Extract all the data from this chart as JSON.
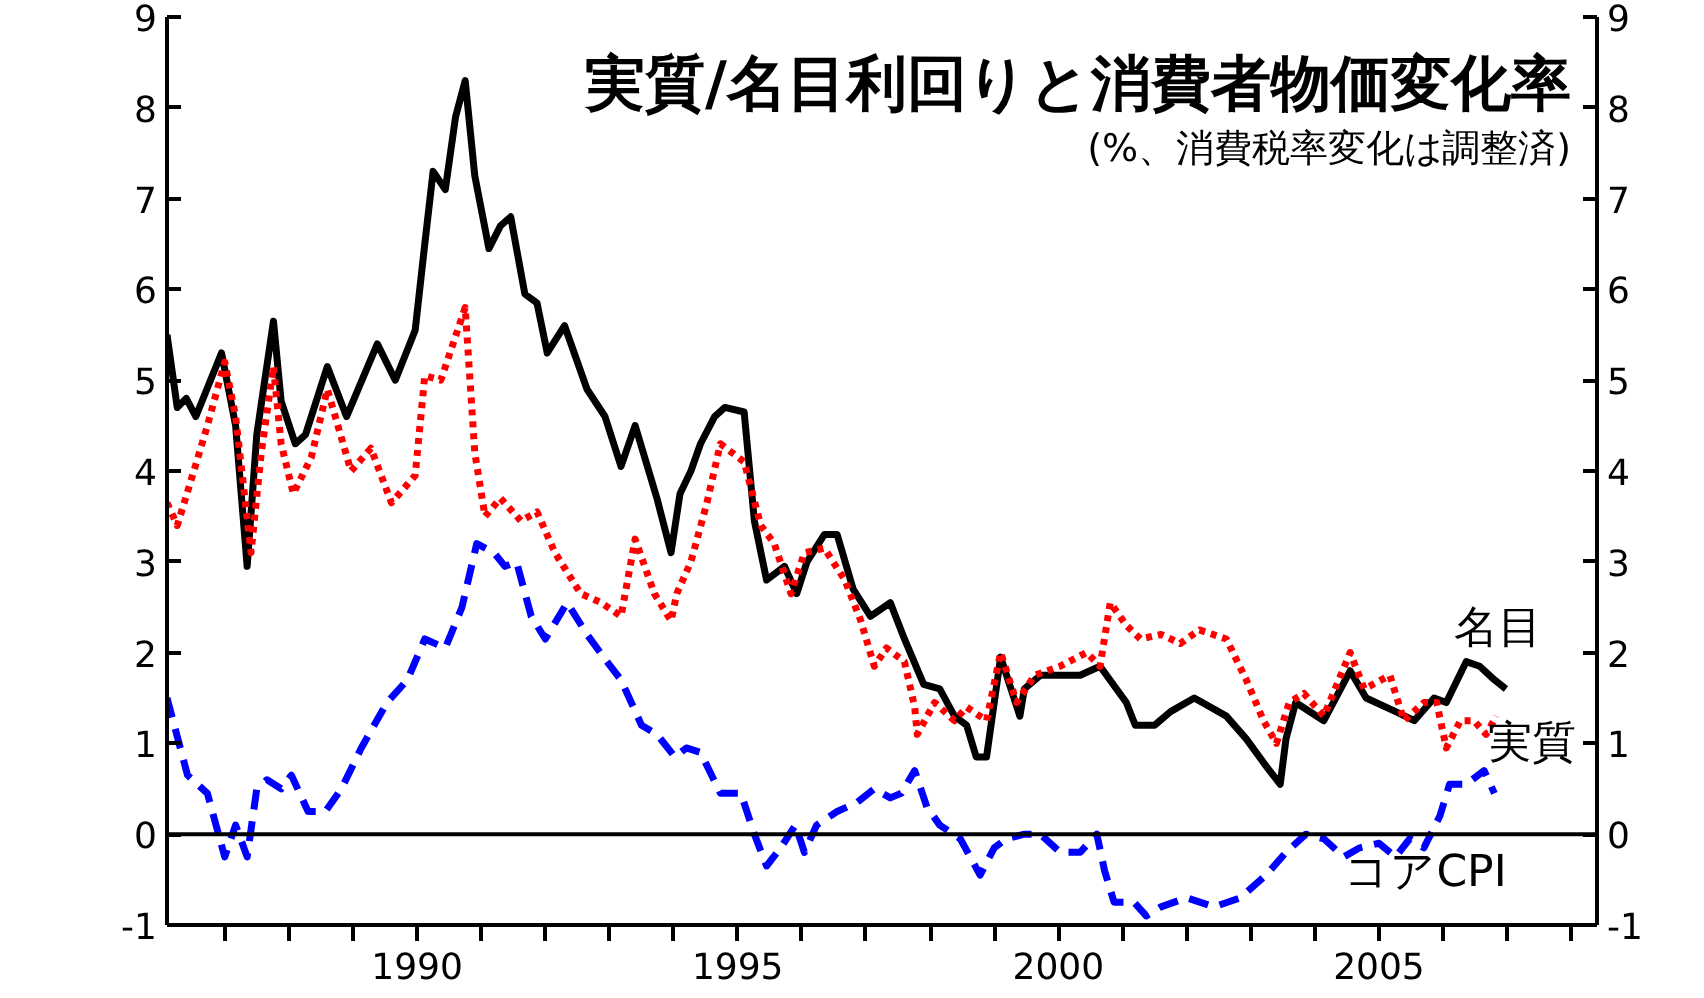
{
  "chart_data": {
    "type": "line",
    "title": "実質/名目利回りと消費者物価変化率",
    "subtitle": "(%、消費税率変化は調整済)",
    "xlim": [
      1986.1,
      2008.4
    ],
    "ylim": [
      -1,
      9
    ],
    "xticks": [
      {
        "value": 1987,
        "label": null
      },
      {
        "value": 1988,
        "label": null
      },
      {
        "value": 1989,
        "label": null
      },
      1990,
      {
        "value": 1991,
        "label": null
      },
      {
        "value": 1992,
        "label": null
      },
      {
        "value": 1993,
        "label": null
      },
      {
        "value": 1994,
        "label": null
      },
      1995,
      {
        "value": 1996,
        "label": null
      },
      {
        "value": 1997,
        "label": null
      },
      {
        "value": 1998,
        "label": null
      },
      {
        "value": 1999,
        "label": null
      },
      2000,
      {
        "value": 2001,
        "label": null
      },
      {
        "value": 2002,
        "label": null
      },
      {
        "value": 2003,
        "label": null
      },
      {
        "value": 2004,
        "label": null
      },
      2005,
      {
        "value": 2006,
        "label": null
      },
      {
        "value": 2007,
        "label": null
      },
      {
        "value": 2008,
        "label": null
      }
    ],
    "yticks": [
      -1,
      0,
      1,
      2,
      3,
      4,
      5,
      6,
      7,
      8,
      9
    ],
    "y2lim": [
      -1,
      9
    ],
    "y2ticks": [
      -1,
      0,
      1,
      2,
      3,
      4,
      5,
      6,
      7,
      8,
      9
    ],
    "grid": false,
    "legend": false,
    "ref_lines": [
      {
        "axis": "y",
        "value": 0,
        "color": "#000000",
        "line_style": "solid"
      }
    ],
    "series": [
      {
        "name": "名目",
        "color": "#000000",
        "line_style": "solid",
        "x": [
          1986.1,
          1986.26,
          1986.4,
          1986.55,
          1986.95,
          1987.17,
          1987.35,
          1987.5,
          1987.76,
          1987.88,
          1988.1,
          1988.26,
          1988.6,
          1988.9,
          1989.38,
          1989.66,
          1989.97,
          1990.12,
          1990.25,
          1990.44,
          1990.6,
          1990.75,
          1990.9,
          1991.12,
          1991.3,
          1991.46,
          1991.68,
          1991.87,
          1992.03,
          1992.3,
          1992.65,
          1992.93,
          1993.18,
          1993.4,
          1993.74,
          1993.96,
          1994.1,
          1994.27,
          1994.42,
          1994.64,
          1994.8,
          1995.1,
          1995.26,
          1995.45,
          1995.73,
          1995.92,
          1996.08,
          1996.35,
          1996.55,
          1996.8,
          1997.07,
          1997.38,
          1997.6,
          1997.9,
          1998.15,
          1998.38,
          1998.57,
          1998.72,
          1998.88,
          1999.1,
          1999.4,
          1999.47,
          1999.72,
          2000.03,
          2000.34,
          2000.65,
          2001.06,
          2001.2,
          2001.5,
          2001.75,
          2002.12,
          2002.62,
          2002.93,
          2003.24,
          2003.46,
          2003.55,
          2003.7,
          2004.14,
          2004.55,
          2004.8,
          2005.26,
          2005.55,
          2005.86,
          2006.05,
          2006.36,
          2006.57,
          2006.8,
          2006.98
        ],
        "values": [
          5.5,
          4.7,
          4.8,
          4.6,
          5.3,
          4.5,
          2.95,
          4.4,
          5.65,
          4.77,
          4.3,
          4.4,
          5.15,
          4.6,
          5.4,
          5.0,
          5.55,
          6.5,
          7.3,
          7.1,
          7.9,
          8.3,
          7.25,
          6.45,
          6.7,
          6.8,
          5.95,
          5.85,
          5.3,
          5.6,
          4.9,
          4.6,
          4.05,
          4.5,
          3.7,
          3.1,
          3.75,
          4.0,
          4.3,
          4.6,
          4.7,
          4.65,
          3.45,
          2.8,
          2.95,
          2.65,
          3.0,
          3.3,
          3.3,
          2.7,
          2.4,
          2.55,
          2.15,
          1.65,
          1.6,
          1.3,
          1.2,
          0.85,
          0.85,
          1.95,
          1.3,
          1.6,
          1.75,
          1.75,
          1.75,
          1.85,
          1.45,
          1.2,
          1.2,
          1.35,
          1.5,
          1.3,
          1.05,
          0.75,
          0.55,
          1.05,
          1.45,
          1.25,
          1.8,
          1.5,
          1.35,
          1.25,
          1.5,
          1.45,
          1.9,
          1.85,
          1.7,
          1.6
        ]
      },
      {
        "name": "実質",
        "color": "#ff0000",
        "line_style": "dotted",
        "x": [
          1986.1,
          1986.26,
          1986.54,
          1986.73,
          1987.0,
          1987.17,
          1987.41,
          1987.57,
          1987.76,
          1987.88,
          1988.07,
          1988.35,
          1988.6,
          1988.97,
          1989.28,
          1989.6,
          1989.97,
          1990.12,
          1990.37,
          1990.75,
          1990.9,
          1991.06,
          1991.3,
          1991.62,
          1991.87,
          1992.15,
          1992.55,
          1992.87,
          1993.18,
          1993.4,
          1993.7,
          1993.96,
          1994.05,
          1994.27,
          1994.52,
          1994.73,
          1995.1,
          1995.36,
          1995.57,
          1995.83,
          1996.04,
          1996.35,
          1996.67,
          1996.92,
          1997.13,
          1997.32,
          1997.6,
          1997.76,
          1997.8,
          1998.07,
          1998.38,
          1998.57,
          1998.88,
          1999.1,
          1999.35,
          1999.63,
          2000.03,
          2000.44,
          2000.65,
          2000.81,
          2001.06,
          2001.28,
          2001.6,
          2001.9,
          2002.2,
          2002.62,
          2002.93,
          2003.2,
          2003.4,
          2003.6,
          2003.83,
          2004.14,
          2004.55,
          2004.77,
          2005.17,
          2005.39,
          2005.7,
          2005.9,
          2006.05,
          2006.27,
          2006.48,
          2006.67,
          2006.83
        ],
        "values": [
          3.65,
          3.4,
          4.05,
          4.5,
          5.2,
          4.6,
          3.1,
          4.2,
          5.15,
          4.3,
          3.75,
          4.15,
          4.9,
          4.0,
          4.25,
          3.65,
          3.95,
          5.05,
          5.0,
          5.8,
          4.2,
          3.5,
          3.7,
          3.45,
          3.55,
          3.1,
          2.65,
          2.55,
          2.4,
          3.25,
          2.65,
          2.35,
          2.65,
          3.0,
          3.65,
          4.3,
          4.1,
          3.4,
          3.2,
          2.65,
          3.1,
          3.15,
          2.8,
          2.35,
          1.85,
          2.05,
          1.9,
          1.4,
          1.1,
          1.45,
          1.25,
          1.4,
          1.25,
          2.0,
          1.45,
          1.75,
          1.85,
          2.0,
          1.85,
          2.55,
          2.3,
          2.15,
          2.2,
          2.1,
          2.25,
          2.15,
          1.7,
          1.25,
          1.0,
          1.45,
          1.55,
          1.3,
          2.0,
          1.6,
          1.75,
          1.25,
          1.45,
          1.45,
          0.95,
          1.25,
          1.25,
          1.1,
          1.3
        ]
      },
      {
        "name": "コアCPI",
        "color": "#0000ff",
        "line_style": "dashed",
        "x": [
          1986.1,
          1986.42,
          1986.73,
          1987.0,
          1987.17,
          1987.35,
          1987.5,
          1987.66,
          1987.88,
          1988.04,
          1988.3,
          1988.57,
          1988.82,
          1989.13,
          1989.53,
          1989.85,
          1990.12,
          1990.44,
          1990.7,
          1990.93,
          1991.2,
          1991.37,
          1991.55,
          1991.78,
          1992.0,
          1992.34,
          1992.65,
          1992.96,
          1993.18,
          1993.5,
          1993.74,
          1994.02,
          1994.2,
          1994.42,
          1994.73,
          1995.05,
          1995.26,
          1995.45,
          1995.67,
          1995.9,
          1996.04,
          1996.23,
          1996.55,
          1996.86,
          1997.13,
          1997.38,
          1997.55,
          1997.76,
          1997.95,
          1998.15,
          1998.47,
          1998.78,
          1999.0,
          1999.19,
          1999.47,
          1999.72,
          2000.03,
          2000.34,
          2000.6,
          2000.72,
          2000.87,
          2001.18,
          2001.37,
          2001.6,
          2002.0,
          2002.43,
          2002.84,
          2003.24,
          2003.55,
          2003.86,
          2004.14,
          2004.45,
          2004.7,
          2005.0,
          2005.26,
          2005.48,
          2005.7,
          2005.95,
          2006.1,
          2006.36,
          2006.64,
          2006.8
        ],
        "values": [
          1.5,
          0.65,
          0.45,
          -0.25,
          0.1,
          -0.25,
          0.5,
          0.6,
          0.5,
          0.65,
          0.25,
          0.25,
          0.5,
          0.95,
          1.45,
          1.7,
          2.15,
          2.05,
          2.5,
          3.2,
          3.1,
          2.95,
          3.0,
          2.4,
          2.15,
          2.55,
          2.2,
          1.9,
          1.7,
          1.2,
          1.1,
          0.85,
          0.95,
          0.9,
          0.45,
          0.45,
          0.0,
          -0.35,
          -0.15,
          0.1,
          -0.2,
          0.1,
          0.25,
          0.35,
          0.5,
          0.4,
          0.45,
          0.7,
          0.3,
          0.1,
          -0.05,
          -0.45,
          -0.15,
          -0.05,
          0.0,
          0.0,
          -0.2,
          -0.2,
          0.0,
          -0.4,
          -0.75,
          -0.75,
          -0.9,
          -0.8,
          -0.7,
          -0.8,
          -0.7,
          -0.45,
          -0.2,
          0.0,
          -0.05,
          -0.25,
          -0.15,
          -0.1,
          -0.25,
          -0.05,
          -0.15,
          0.2,
          0.55,
          0.55,
          0.7,
          0.45
        ]
      }
    ]
  }
}
